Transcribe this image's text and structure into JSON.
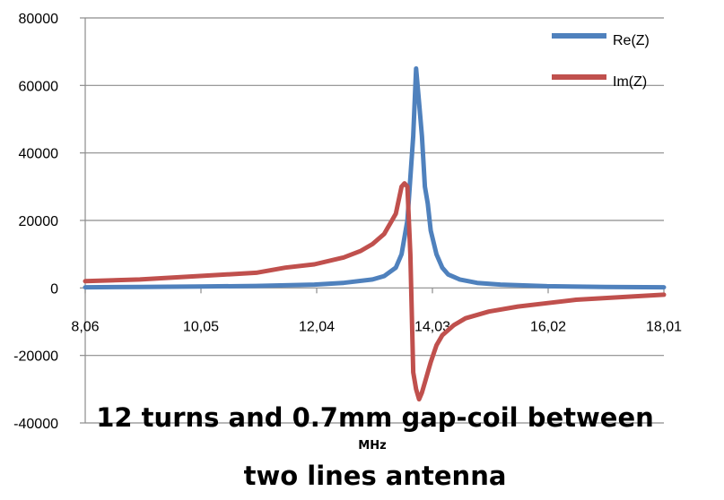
{
  "chart_data": {
    "type": "line",
    "title_line1": "12 turns and 0.7mm gap-coil between",
    "title_line2": "two lines antenna",
    "xlabel": "MHz",
    "ylabel": "",
    "xlim": [
      8.06,
      18.01
    ],
    "ylim": [
      -40000,
      80000
    ],
    "x_tick_labels": [
      "8,06",
      "10,05",
      "12,04",
      "14,03",
      "16,02",
      "18,01"
    ],
    "x_ticks": [
      8.06,
      10.05,
      12.04,
      14.03,
      16.02,
      18.01
    ],
    "y_ticks": [
      -40000,
      -20000,
      0,
      20000,
      40000,
      60000,
      80000
    ],
    "y_tick_labels": [
      "-40000",
      "-20000",
      "0",
      "20000",
      "40000",
      "60000",
      "80000"
    ],
    "grid": "horizontal",
    "legend_position": "top-right",
    "series": [
      {
        "name": "Re(Z)",
        "color": "#4f81bd",
        "x": [
          8.06,
          9.0,
          10.0,
          11.0,
          12.0,
          12.5,
          13.0,
          13.2,
          13.4,
          13.5,
          13.6,
          13.7,
          13.75,
          13.8,
          13.85,
          13.9,
          13.95,
          14.0,
          14.1,
          14.2,
          14.3,
          14.5,
          14.8,
          15.2,
          16.0,
          17.0,
          18.01
        ],
        "values": [
          200,
          300,
          400,
          600,
          1000,
          1500,
          2500,
          3500,
          6000,
          10000,
          20000,
          45000,
          65000,
          55000,
          45000,
          30000,
          25000,
          17000,
          10000,
          6000,
          4000,
          2500,
          1500,
          1000,
          500,
          300,
          200
        ]
      },
      {
        "name": "Im(Z)",
        "color": "#c0504d",
        "x": [
          8.06,
          9.0,
          10.0,
          11.0,
          11.5,
          12.0,
          12.5,
          12.8,
          13.0,
          13.2,
          13.4,
          13.5,
          13.55,
          13.6,
          13.65,
          13.7,
          13.75,
          13.8,
          13.85,
          13.9,
          14.0,
          14.1,
          14.2,
          14.4,
          14.6,
          15.0,
          15.5,
          16.0,
          16.5,
          17.0,
          17.5,
          18.01
        ],
        "values": [
          2000,
          2500,
          3500,
          4500,
          6000,
          7000,
          9000,
          11000,
          13000,
          16000,
          22000,
          30000,
          31000,
          30000,
          10000,
          -25000,
          -30000,
          -33000,
          -31000,
          -28000,
          -22000,
          -17000,
          -14000,
          -11000,
          -9000,
          -7000,
          -5500,
          -4500,
          -3500,
          -3000,
          -2500,
          -2000
        ]
      }
    ]
  }
}
